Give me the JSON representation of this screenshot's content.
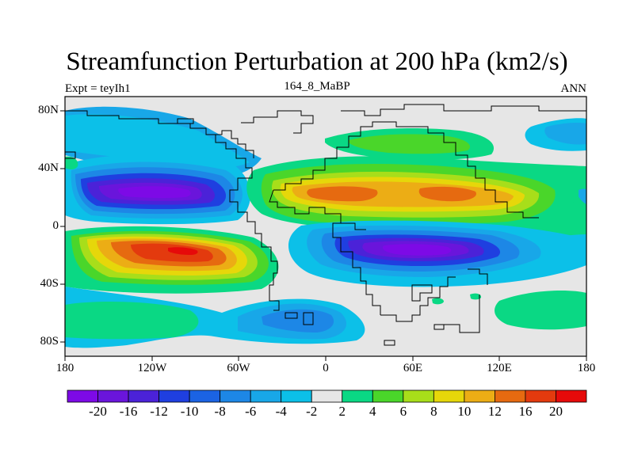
{
  "title": "Streamfunction Perturbation at 200 hPa (km2/s)",
  "left_string": "Expt = teyIh1",
  "center_string": "164_8_MaBP",
  "right_string": "ANN",
  "lat_labels": [
    "80N",
    "40N",
    "0",
    "40S",
    "80S"
  ],
  "lon_labels": [
    "180",
    "120W",
    "60W",
    "0",
    "60E",
    "120E",
    "180"
  ],
  "colorbar": {
    "labels": [
      "-20",
      "-16",
      "-12",
      "-10",
      "-8",
      "-6",
      "-4",
      "-2",
      "2",
      "4",
      "6",
      "8",
      "10",
      "12",
      "16",
      "20"
    ],
    "colors": [
      "#7d0ae6",
      "#6a15db",
      "#4b22d8",
      "#1f3fe0",
      "#1b63e3",
      "#1d87e6",
      "#18a7e8",
      "#0cc0e8",
      "#e6e6e6",
      "#0ad884",
      "#4ad62a",
      "#a8de1a",
      "#e6d70a",
      "#ecad15",
      "#e66a10",
      "#e33a0e",
      "#e60a0a"
    ]
  },
  "chart_data": {
    "type": "heatmap",
    "title": "Streamfunction Perturbation at 200 hPa (km2/s)",
    "variable": "Streamfunction Perturbation",
    "units": "km2/s",
    "level": "200 hPa",
    "x_range": [
      -180,
      180
    ],
    "y_range": [
      -90,
      90
    ],
    "contour_levels": [
      -20,
      -16,
      -12,
      -10,
      -8,
      -6,
      -4,
      -2,
      2,
      4,
      6,
      8,
      10,
      12,
      16,
      20
    ],
    "features": [
      {
        "lon": -100,
        "lat": 23,
        "value": -20
      },
      {
        "lon": -100,
        "lat": -15,
        "value": 20
      },
      {
        "lon": 60,
        "lat": -20,
        "value": -20
      },
      {
        "lon": 15,
        "lat": 22,
        "value": 12
      },
      {
        "lon": 70,
        "lat": 22,
        "value": 12
      },
      {
        "lon": -140,
        "lat": 70,
        "value": -4
      },
      {
        "lon": 100,
        "lat": 55,
        "value": 4
      },
      {
        "lon": 170,
        "lat": 55,
        "value": -4
      },
      {
        "lon": -30,
        "lat": -60,
        "value": -6
      },
      {
        "lon": 150,
        "lat": -50,
        "value": 4
      }
    ]
  }
}
